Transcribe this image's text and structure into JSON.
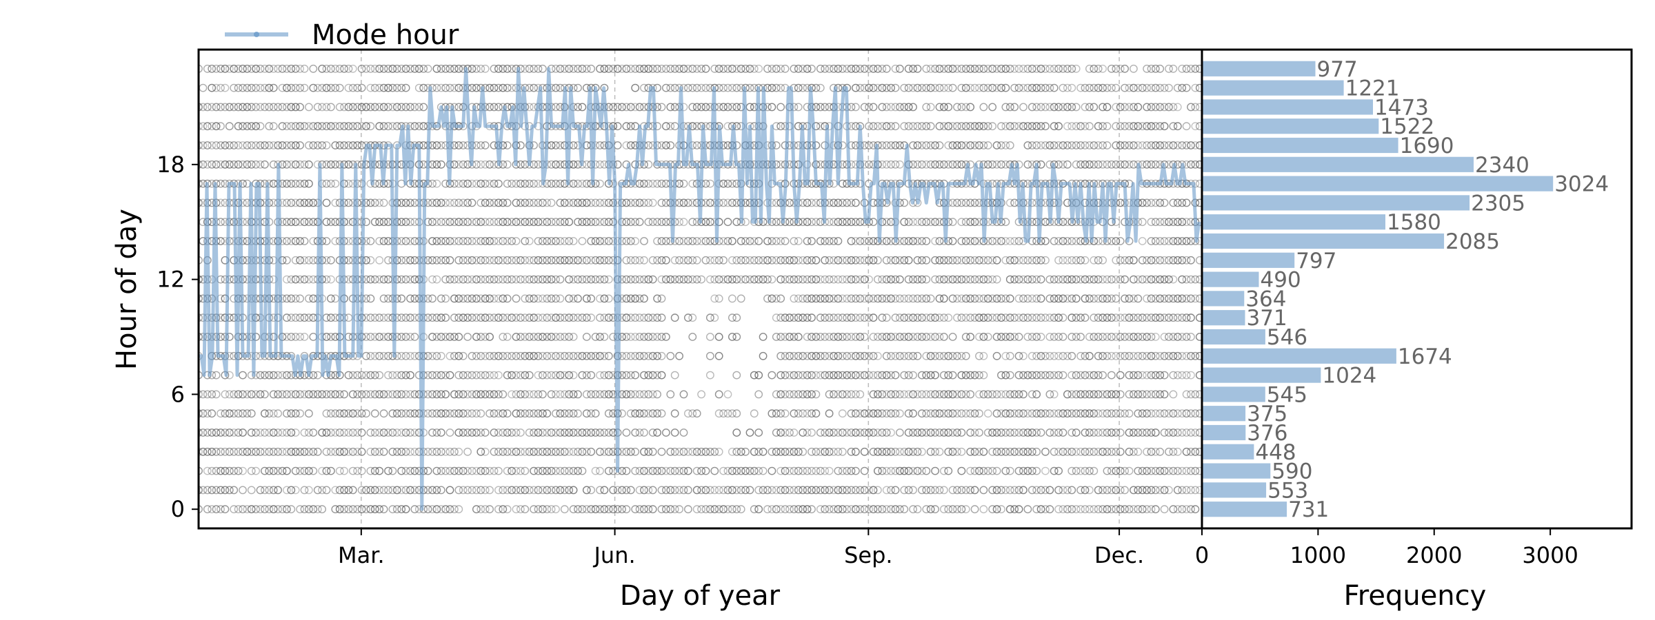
{
  "chart_data": [
    {
      "type": "scatter",
      "xlabel": "Day of year",
      "ylabel": "Hour of day",
      "xlim": [
        1,
        365
      ],
      "ylim": [
        -1,
        24
      ],
      "x_ticks": [
        {
          "label": "Mar.",
          "day": 60
        },
        {
          "label": "Jun.",
          "day": 152
        },
        {
          "label": "Sep.",
          "day": 244
        },
        {
          "label": "Dec.",
          "day": 335
        }
      ],
      "y_ticks": [
        "0",
        "6",
        "12",
        "18"
      ],
      "y_tick_values": [
        0,
        6,
        12,
        18
      ],
      "grid": "dashed vertical at month ticks",
      "legend": {
        "placement": "top-left",
        "entries": [
          "Mode hour"
        ]
      },
      "scatter_series": {
        "name": "",
        "marker": "open circle",
        "color": "#555555",
        "hours": [
          0,
          1,
          2,
          3,
          4,
          5,
          6,
          7,
          8,
          9,
          10,
          11,
          12,
          13,
          14,
          15,
          16,
          17,
          18,
          19,
          20,
          21,
          22,
          23
        ],
        "sparse_hours_midyear": [
          4,
          5,
          6,
          7,
          8,
          9,
          10,
          11
        ],
        "sparse_day_range": [
          170,
          210
        ]
      },
      "line_series": {
        "name": "Mode hour",
        "color": "#6a9bc9",
        "alpha": 0.6,
        "segments": [
          {
            "from_day": 1,
            "to_day": 30,
            "mode_hour": 8,
            "alternates": [
              7,
              17
            ]
          },
          {
            "from_day": 30,
            "to_day": 62,
            "mode_hour": 8,
            "alternates": [
              7,
              18
            ]
          },
          {
            "from_day": 62,
            "to_day": 85,
            "mode_hour": 19,
            "alternates": [
              20,
              8,
              17
            ]
          },
          {
            "from_day": 85,
            "to_day": 150,
            "mode_hour": 20,
            "alternates": [
              21,
              22,
              23,
              18,
              17
            ]
          },
          {
            "from_day": 150,
            "to_day": 160,
            "mode_hour": 17,
            "alternates": [
              20,
              2,
              18
            ]
          },
          {
            "from_day": 160,
            "to_day": 200,
            "mode_hour": 18,
            "alternates": [
              20,
              22,
              15,
              14
            ]
          },
          {
            "from_day": 200,
            "to_day": 245,
            "mode_hour": 17,
            "alternates": [
              20,
              15,
              22
            ]
          },
          {
            "from_day": 245,
            "to_day": 280,
            "mode_hour": 17,
            "alternates": [
              14,
              19,
              16
            ]
          },
          {
            "from_day": 280,
            "to_day": 365,
            "mode_hour": 17,
            "alternates": [
              14,
              15,
              18
            ]
          }
        ],
        "drops": [
          {
            "day": 82,
            "hour": 0
          },
          {
            "day": 153,
            "hour": 2
          }
        ]
      }
    },
    {
      "type": "bar",
      "orientation": "horizontal",
      "xlabel": "Frequency",
      "ylabel": "",
      "xlim": [
        0,
        3700
      ],
      "x_ticks": [
        "0",
        "1000",
        "2000",
        "3000"
      ],
      "x_tick_values": [
        0,
        1000,
        2000,
        3000
      ],
      "categories": [
        0,
        1,
        2,
        3,
        4,
        5,
        6,
        7,
        8,
        9,
        10,
        11,
        12,
        13,
        14,
        15,
        16,
        17,
        18,
        19,
        20,
        21,
        22,
        23
      ],
      "values": [
        731,
        553,
        590,
        448,
        376,
        375,
        545,
        1024,
        1674,
        546,
        371,
        364,
        490,
        797,
        2085,
        1580,
        2305,
        3024,
        2340,
        1690,
        1522,
        1473,
        1221,
        977
      ],
      "value_labels": [
        "731",
        "553",
        "590",
        "448",
        "376",
        "375",
        "545",
        "1024",
        "1674",
        "546",
        "371",
        "364",
        "490",
        "797",
        "2085",
        "1580",
        "2305",
        "3024",
        "2340",
        "1690",
        "1522",
        "1473",
        "1221",
        "977"
      ],
      "color": "#a3c1de",
      "label_color": "#666666"
    }
  ]
}
